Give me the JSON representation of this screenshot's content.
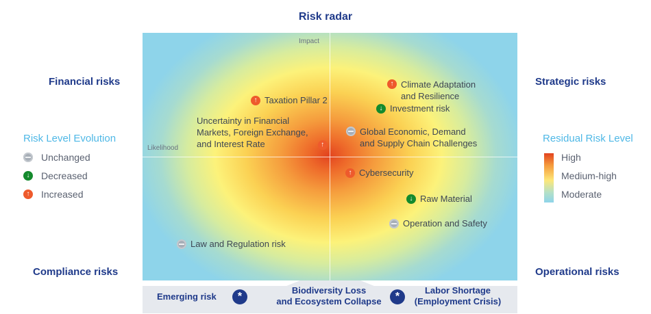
{
  "title": "Risk radar",
  "quadrants": {
    "top_left": "Financial risks",
    "top_right": "Strategic risks",
    "bottom_left": "Compliance risks",
    "bottom_right": "Operational risks"
  },
  "axes": {
    "vertical": "Impact",
    "horizontal": "Likelihood"
  },
  "evolution_legend": {
    "title": "Risk Level Evolution",
    "items": [
      "Unchanged",
      "Decreased",
      "Increased"
    ]
  },
  "residual_legend": {
    "title": "Residual Risk Level",
    "items": [
      "High",
      "Medium-high",
      "Moderate"
    ],
    "colors": [
      "#e2431f",
      "#fde779",
      "#8ed4ea"
    ]
  },
  "risks": [
    {
      "label": "Taxation Pillar 2",
      "trend": "increased"
    },
    {
      "label": "Uncertainty in Financial\nMarkets, Foreign Exchange,\nand Interest Rate",
      "trend": "increased"
    },
    {
      "label": "Climate Adaptation\nand Resilience",
      "trend": "increased"
    },
    {
      "label": "Investment risk",
      "trend": "decreased"
    },
    {
      "label": "Global Economic, Demand\nand Supply Chain Challenges",
      "trend": "unchanged"
    },
    {
      "label": "Cybersecurity",
      "trend": "increased"
    },
    {
      "label": "Raw Material",
      "trend": "decreased"
    },
    {
      "label": "Operation and Safety",
      "trend": "unchanged"
    },
    {
      "label": "Law and Regulation risk",
      "trend": "unchanged"
    }
  ],
  "emerging": {
    "label": "Emerging risk",
    "items": [
      "Biodiversity Loss\nand Ecosystem Collapse",
      "Labor Shortage\n(Employment Crisis)"
    ]
  }
}
